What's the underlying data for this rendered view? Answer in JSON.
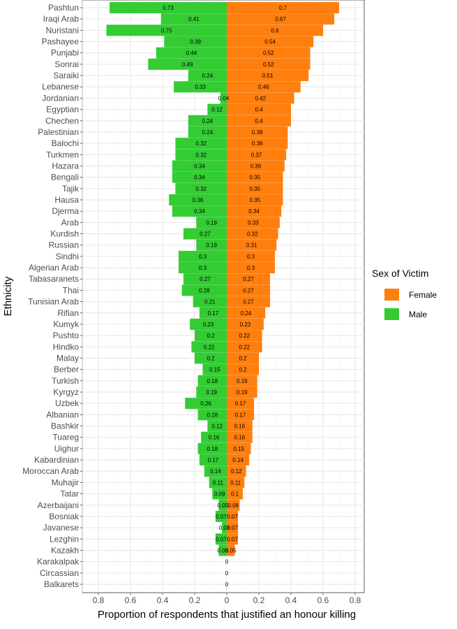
{
  "chart_data": {
    "type": "bar",
    "orientation": "horizontal-diverging",
    "title": "",
    "xlabel": "Proportion of respondents that justified an honour killing",
    "ylabel": "Ethnicity",
    "xlim": [
      -0.85,
      0.85
    ],
    "x_ticks": [
      -0.8,
      -0.6,
      -0.4,
      -0.2,
      0,
      0.2,
      0.4,
      0.6,
      0.8
    ],
    "x_tick_labels": [
      "0.8",
      "0.6",
      "0.4",
      "0.2",
      "0",
      "0.2",
      "0.4",
      "0.6",
      "0.8"
    ],
    "grid": true,
    "legend": {
      "title": "Sex of Victim",
      "position": "right",
      "entries": [
        {
          "label": "Female",
          "color": "#ff7f0e"
        },
        {
          "label": "Male",
          "color": "#33cc33"
        }
      ]
    },
    "categories": [
      "Pashtun",
      "Iraqi Arab",
      "Nuristani",
      "Pashayee",
      "Punjabi",
      "Sonrai",
      "Saraiki",
      "Lebanese",
      "Jordanian",
      "Egyptian",
      "Chechen",
      "Palestinian",
      "Balochi",
      "Turkmen",
      "Hazara",
      "Bengali",
      "Tajik",
      "Hausa",
      "Djerma",
      "Arab",
      "Kurdish",
      "Russian",
      "Sindhi",
      "Algerian Arab",
      "Tabasaranets",
      "Thai",
      "Tunisian Arab",
      "Rifian",
      "Kumyk",
      "Pushto",
      "Hindko",
      "Malay",
      "Berber",
      "Turkish",
      "Kyrgyz",
      "Uzbek",
      "Albanian",
      "Bashkir",
      "Tuareg",
      "Uighur",
      "Kabardinian",
      "Moroccan Arab",
      "Muhajir",
      "Tatar",
      "Azerbaijani",
      "Bosniak",
      "Javanese",
      "Lezghin",
      "Kazakh",
      "Karakalpak",
      "Circassian",
      "Balkarets"
    ],
    "series": [
      {
        "name": "Female",
        "side": "right",
        "color": "#ff7f0e",
        "values": [
          0.7,
          0.67,
          0.6,
          0.54,
          0.52,
          0.52,
          0.51,
          0.46,
          0.42,
          0.4,
          0.4,
          0.38,
          0.38,
          0.37,
          0.36,
          0.35,
          0.35,
          0.35,
          0.34,
          0.33,
          0.32,
          0.31,
          0.3,
          0.3,
          0.27,
          0.27,
          0.27,
          0.24,
          0.23,
          0.22,
          0.22,
          0.2,
          0.2,
          0.19,
          0.19,
          0.17,
          0.17,
          0.16,
          0.16,
          0.15,
          0.14,
          0.12,
          0.11,
          0.1,
          0.08,
          0.07,
          0.07,
          0.07,
          0.05,
          0,
          0,
          0
        ],
        "labels": [
          "0.7",
          "0.67",
          "0.6",
          "0.54",
          "0.52",
          "0.52",
          "0.51",
          "0.46",
          "0.42",
          "0.4",
          "0.4",
          "0.38",
          "0.38",
          "0.37",
          "0.36",
          "0.35",
          "0.35",
          "0.35",
          "0.34",
          "0.33",
          "0.32",
          "0.31",
          "0.3",
          "0.3",
          "0.27",
          "0.27",
          "0.27",
          "0.24",
          "0.23",
          "0.22",
          "0.22",
          "0.2",
          "0.2",
          "0.19",
          "0.19",
          "0.17",
          "0.17",
          "0.16",
          "0.16",
          "0.15",
          "0.14",
          "0.12",
          "0.11",
          "0.1",
          "0.08",
          "0.07",
          "0.07",
          "0.07",
          "0.05",
          "0",
          "0",
          "0"
        ]
      },
      {
        "name": "Male",
        "side": "left",
        "color": "#33cc33",
        "values": [
          0.73,
          0.41,
          0.75,
          0.39,
          0.44,
          0.49,
          0.24,
          0.33,
          0.04,
          0.12,
          0.24,
          0.24,
          0.32,
          0.32,
          0.34,
          0.34,
          0.32,
          0.36,
          0.34,
          0.19,
          0.27,
          0.19,
          0.3,
          0.3,
          0.27,
          0.28,
          0.21,
          0.17,
          0.23,
          0.2,
          0.22,
          0.2,
          0.15,
          0.18,
          0.19,
          0.26,
          0.18,
          0.12,
          0.16,
          0.18,
          0.17,
          0.14,
          0.11,
          0.09,
          0.05,
          0.07,
          0.03,
          0.07,
          0.05,
          0,
          0,
          0
        ],
        "labels": [
          "0.73",
          "0.41",
          "0.75",
          "0.39",
          "0.44",
          "0.49",
          "0.24",
          "0.33",
          "0.04",
          "0.12",
          "0.24",
          "0.24",
          "0.32",
          "0.32",
          "0.34",
          "0.34",
          "0.32",
          "0.36",
          "0.34",
          "0.19",
          "0.27",
          "0.19",
          "0.3",
          "0.3",
          "0.27",
          "0.28",
          "0.21",
          "0.17",
          "0.23",
          "0.2",
          "0.22",
          "0.2",
          "0.15",
          "0.18",
          "0.19",
          "0.26",
          "0.18",
          "0.12",
          "0.16",
          "0.18",
          "0.17",
          "0.14",
          "0.11",
          "0.09",
          "0.05",
          "0.07",
          "0.03",
          "0.07",
          "0.05",
          "0",
          "0",
          "0"
        ]
      }
    ]
  }
}
